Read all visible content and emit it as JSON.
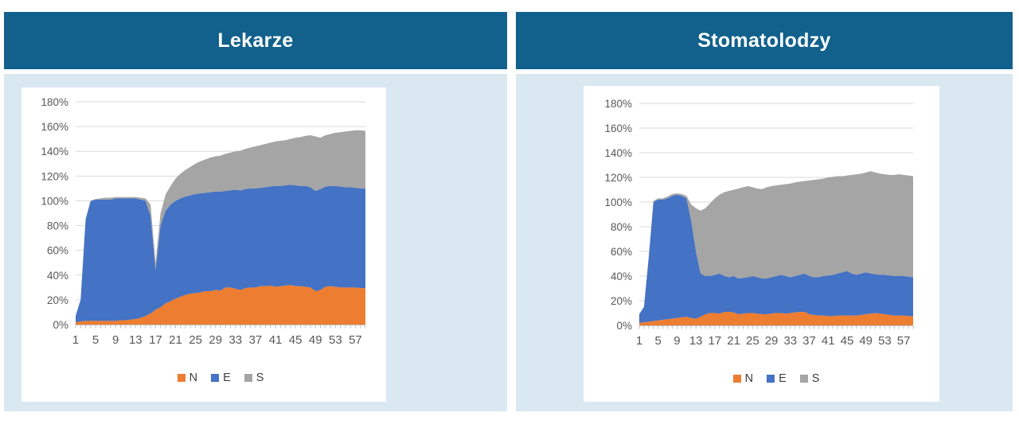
{
  "panels": [
    {
      "title": "Lekarze"
    },
    {
      "title": "Stomatolodzy"
    }
  ],
  "colors": {
    "header_bg": "#11618C",
    "panel_bg": "#DAE8F2",
    "chart_bg": "#FFFFFF",
    "grid": "#D9D9D9",
    "axis": "#BFBFBF",
    "tick_label": "#595959",
    "legend_label": "#404040",
    "series_N": "#ED7D31",
    "series_E": "#4472C4",
    "series_S": "#A5A5A5"
  },
  "chart_data": [
    {
      "type": "area",
      "stacked": true,
      "title": "Lekarze",
      "x": [
        1,
        2,
        3,
        4,
        5,
        6,
        7,
        8,
        9,
        10,
        11,
        12,
        13,
        14,
        15,
        16,
        17,
        18,
        19,
        20,
        21,
        22,
        23,
        24,
        25,
        26,
        27,
        28,
        29,
        30,
        31,
        32,
        33,
        34,
        35,
        36,
        37,
        38,
        39,
        40,
        41,
        42,
        43,
        44,
        45,
        46,
        47,
        48,
        49,
        50,
        51,
        52,
        53,
        54,
        55,
        56,
        57,
        58,
        59
      ],
      "x_tick_labels": [
        1,
        5,
        9,
        13,
        17,
        21,
        25,
        29,
        33,
        37,
        41,
        45,
        49,
        53,
        57
      ],
      "ylim": [
        0,
        180
      ],
      "ytick_step": 20,
      "ytick_suffix": "%",
      "grid": true,
      "legend_position": "bottom",
      "series": [
        {
          "name": "N",
          "color": "#ED7D31",
          "values": [
            2,
            2.5,
            3,
            3,
            3,
            3,
            3,
            3,
            3,
            3.5,
            3.5,
            4,
            4.5,
            5.5,
            7,
            9,
            12,
            14,
            17,
            19,
            21,
            22.5,
            24,
            25,
            25.5,
            26,
            27,
            27,
            28,
            27.5,
            30,
            30,
            29,
            28,
            29.5,
            30,
            30,
            31,
            31,
            31.5,
            30.5,
            31,
            31.5,
            32,
            31,
            31,
            30.5,
            30,
            27,
            28,
            30.5,
            31,
            30.5,
            30,
            30,
            30,
            30,
            29.5,
            29.5
          ]
        },
        {
          "name": "E",
          "color": "#4472C4",
          "values": [
            5,
            17.5,
            82,
            97,
            98,
            98,
            98,
            98,
            99,
            98.5,
            98.5,
            98,
            97.5,
            95.5,
            93,
            79,
            32,
            66,
            75,
            78,
            79,
            79.5,
            79.5,
            79.5,
            80,
            80,
            79.5,
            80,
            79.5,
            80,
            78,
            78.5,
            80,
            80.5,
            80,
            80,
            80,
            79.5,
            80,
            80,
            81.5,
            81,
            81,
            81,
            81.5,
            81,
            81.5,
            81,
            81,
            81.5,
            81,
            81,
            81.5,
            81.5,
            81,
            81,
            80.5,
            80.5,
            80.5
          ]
        },
        {
          "name": "S",
          "color": "#A5A5A5",
          "values": [
            0,
            0,
            0,
            0,
            0.5,
            1,
            1.5,
            1.5,
            1,
            1,
            1,
            1,
            1,
            1.5,
            2,
            9,
            6,
            10,
            13,
            15,
            18,
            20,
            21.5,
            23,
            24.5,
            26,
            27,
            28,
            28.5,
            29,
            30,
            30.5,
            31,
            32,
            32.5,
            33,
            34,
            34.5,
            35,
            35.5,
            36,
            36.5,
            36.5,
            37,
            38.5,
            39.5,
            40.5,
            42,
            44,
            41.5,
            41.5,
            42,
            43,
            44,
            45,
            45.5,
            46.5,
            47,
            46.5
          ]
        }
      ]
    },
    {
      "type": "area",
      "stacked": true,
      "title": "Stomatolodzy",
      "x": [
        1,
        2,
        3,
        4,
        5,
        6,
        7,
        8,
        9,
        10,
        11,
        12,
        13,
        14,
        15,
        16,
        17,
        18,
        19,
        20,
        21,
        22,
        23,
        24,
        25,
        26,
        27,
        28,
        29,
        30,
        31,
        32,
        33,
        34,
        35,
        36,
        37,
        38,
        39,
        40,
        41,
        42,
        43,
        44,
        45,
        46,
        47,
        48,
        49,
        50,
        51,
        52,
        53,
        54,
        55,
        56,
        57,
        58,
        59
      ],
      "x_tick_labels": [
        1,
        5,
        9,
        13,
        17,
        21,
        25,
        29,
        33,
        37,
        41,
        45,
        49,
        53,
        57
      ],
      "ylim": [
        0,
        180
      ],
      "ytick_step": 20,
      "ytick_suffix": "%",
      "grid": true,
      "legend_position": "bottom",
      "series": [
        {
          "name": "N",
          "color": "#ED7D31",
          "values": [
            2,
            2.5,
            3,
            3.5,
            4,
            4.5,
            5,
            5.5,
            6,
            6.5,
            7,
            6,
            5.5,
            7,
            9,
            10,
            10,
            9.5,
            11,
            11,
            10.5,
            9,
            9.5,
            10,
            10,
            9.5,
            9,
            9,
            9.5,
            10,
            10,
            9.5,
            10,
            10.5,
            11,
            11,
            9,
            8.5,
            8,
            8,
            7.5,
            7.5,
            8,
            8,
            8,
            8,
            8,
            8.5,
            9,
            9.5,
            10,
            9.5,
            9,
            8.5,
            8,
            8,
            8,
            7.5,
            7.5
          ]
        },
        {
          "name": "E",
          "color": "#4472C4",
          "values": [
            7,
            12.5,
            52,
            96.5,
            98,
            97.5,
            98,
            99.5,
            100,
            98.5,
            96,
            79,
            54.5,
            35,
            31,
            30,
            31,
            32.5,
            29,
            28,
            29.5,
            29,
            29,
            29,
            30,
            29.5,
            29,
            29,
            29.5,
            30,
            31,
            30.5,
            29,
            29.5,
            30,
            31,
            31,
            30.5,
            31,
            32,
            33,
            33.5,
            34,
            35,
            36,
            34,
            33,
            33.5,
            34,
            32.5,
            31.5,
            31.5,
            32,
            32,
            32,
            32,
            32,
            32,
            31.5
          ]
        },
        {
          "name": "S",
          "color": "#A5A5A5",
          "values": [
            0,
            0,
            0,
            1,
            1,
            1,
            1.5,
            1.5,
            1,
            1.5,
            2,
            13,
            35,
            51,
            55,
            59,
            62,
            64,
            68,
            70,
            70,
            73,
            73.5,
            74,
            72,
            72,
            72.5,
            74,
            74,
            73.5,
            73,
            74.5,
            76,
            76,
            75.5,
            75,
            77.5,
            79,
            79.5,
            79,
            79.5,
            79.5,
            79,
            78,
            77.5,
            80,
            81.5,
            81,
            81,
            83,
            82.5,
            82,
            81.5,
            81.5,
            82,
            82.5,
            82,
            82,
            82
          ]
        }
      ]
    }
  ]
}
